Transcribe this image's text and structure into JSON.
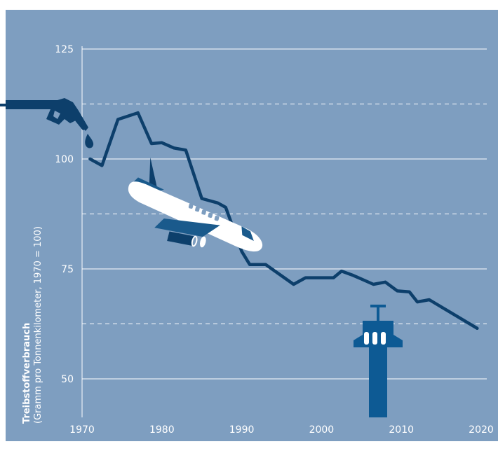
{
  "chart_data": {
    "type": "line",
    "title": "",
    "ylabel": "Treibstoffverbrauch",
    "ylabel_sub": "(Gramm pro Tonnenkilometer, 1970 = 100)",
    "xlabel": "",
    "xlim": [
      1970,
      2020
    ],
    "ylim": [
      40,
      130
    ],
    "x_ticks": [
      1970,
      1980,
      1990,
      2000,
      2010,
      2020
    ],
    "y_ticks": [
      50,
      75,
      100,
      125
    ],
    "y_dashed": [
      62.5,
      87.5,
      112.5
    ],
    "grid": true,
    "colors": {
      "background": "#7e9ec0",
      "line": "#0d3f6b",
      "grid": "#ffffff",
      "plane": "#ffffff",
      "plane_accent": "#1a5a8c",
      "tower": "#0d5a94"
    },
    "series": [
      {
        "name": "",
        "x": [
          1971,
          1972.5,
          1974.5,
          1977,
          1978.7,
          1980,
          1981.5,
          1983,
          1985,
          1987,
          1988,
          1989,
          1990,
          1991,
          1993,
          1996.5,
          1998,
          2000,
          2001.5,
          2002.5,
          2004,
          2006.5,
          2008,
          2009.5,
          2011,
          2012,
          2013.5,
          2019.5
        ],
        "y": [
          100,
          98.5,
          109,
          110.5,
          103.5,
          103.7,
          102.5,
          102,
          91,
          90,
          89,
          84,
          79,
          76,
          76,
          71.5,
          73,
          73,
          73,
          74.5,
          73.5,
          71.5,
          72,
          70,
          69.8,
          67.5,
          68,
          61.5
        ]
      }
    ]
  },
  "icons": {
    "nozzle": "fuel-nozzle-icon",
    "drop": "fuel-drop-icon",
    "plane": "airplane-icon",
    "tower": "control-tower-icon"
  }
}
